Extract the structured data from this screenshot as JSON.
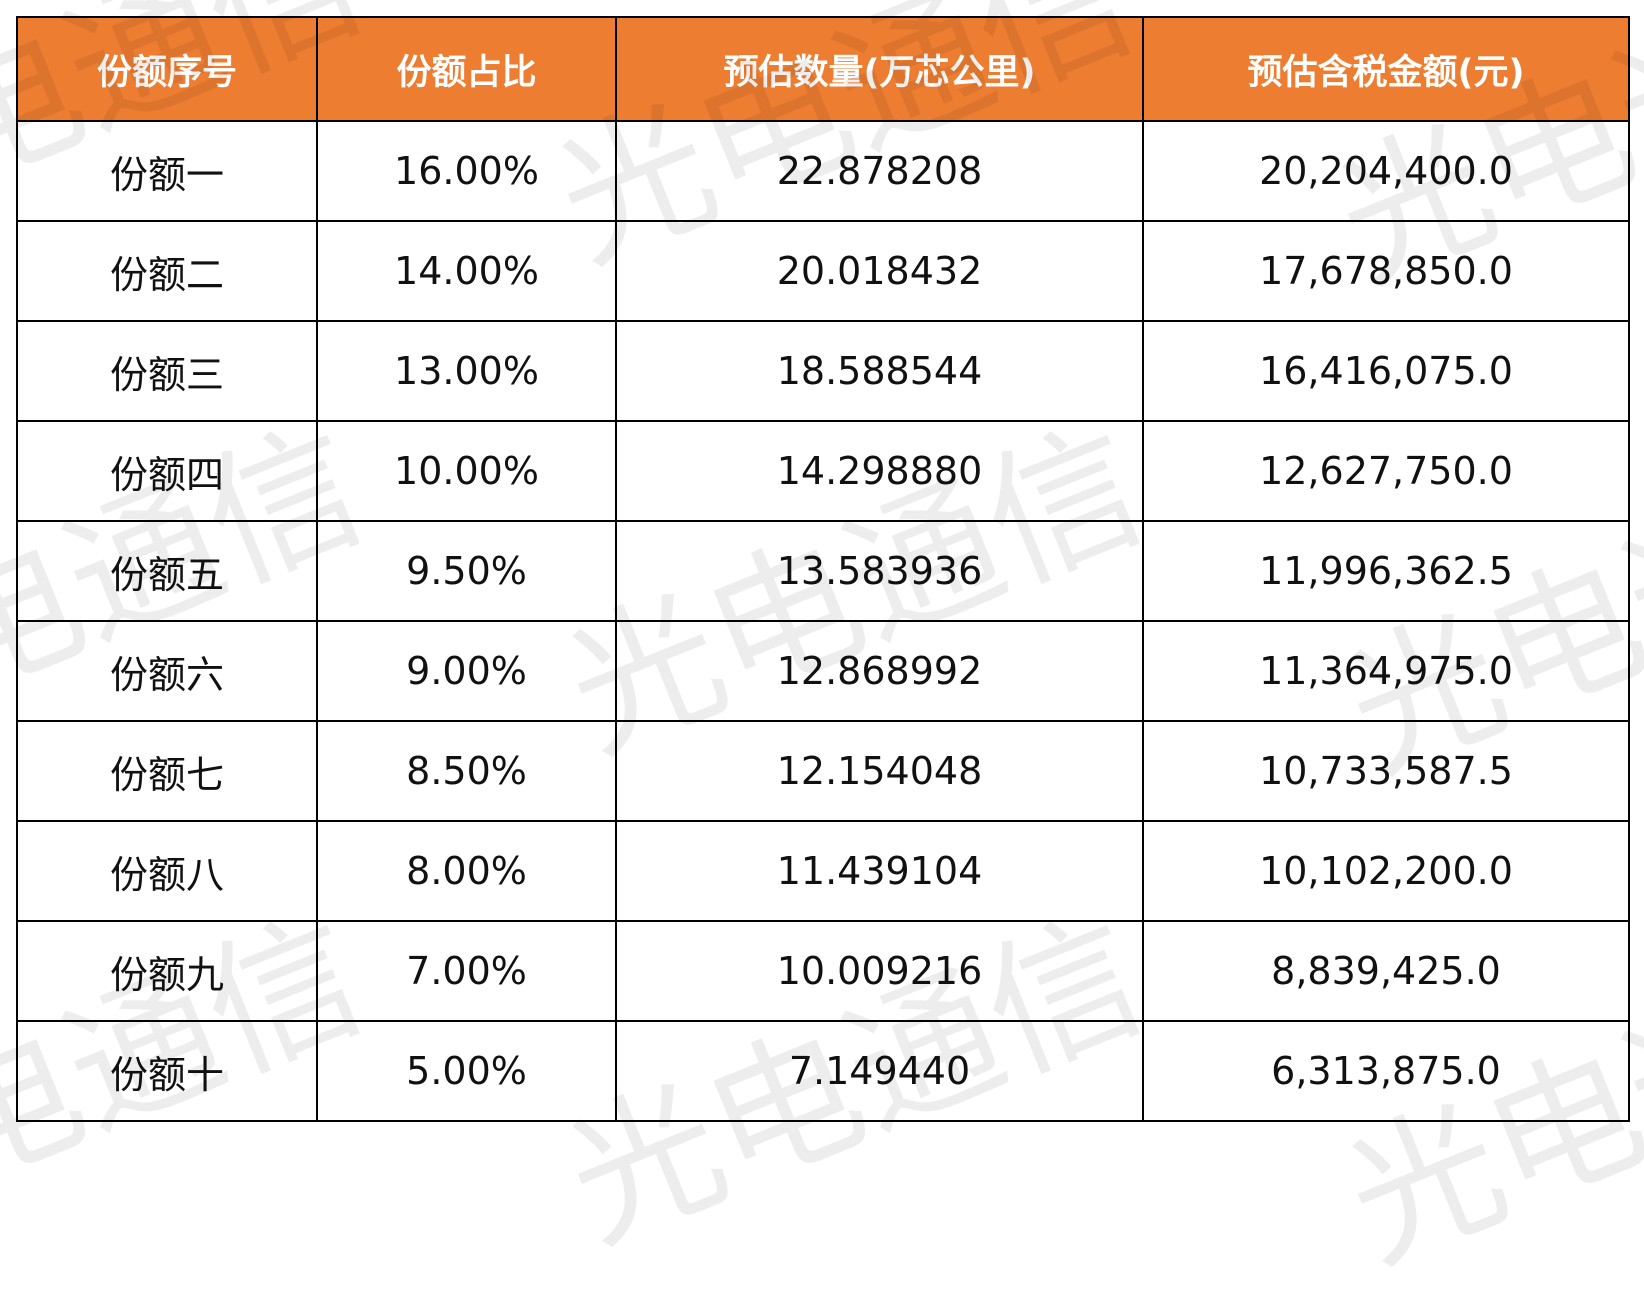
{
  "watermark": "光电通信",
  "colors": {
    "header_bg": "#ED7D31",
    "header_text": "#FFFFFF"
  },
  "table": {
    "headers": [
      "份额序号",
      "份额占比",
      "预估数量(万芯公里)",
      "预估含税金额(元)"
    ],
    "rows": [
      [
        "份额一",
        "16.00%",
        "22.878208",
        "20,204,400.0"
      ],
      [
        "份额二",
        "14.00%",
        "20.018432",
        "17,678,850.0"
      ],
      [
        "份额三",
        "13.00%",
        "18.588544",
        "16,416,075.0"
      ],
      [
        "份额四",
        "10.00%",
        "14.298880",
        "12,627,750.0"
      ],
      [
        "份额五",
        "9.50%",
        "13.583936",
        "11,996,362.5"
      ],
      [
        "份额六",
        "9.00%",
        "12.868992",
        "11,364,975.0"
      ],
      [
        "份额七",
        "8.50%",
        "12.154048",
        "10,733,587.5"
      ],
      [
        "份额八",
        "8.00%",
        "11.439104",
        "10,102,200.0"
      ],
      [
        "份额九",
        "7.00%",
        "10.009216",
        "8,839,425.0"
      ],
      [
        "份额十",
        "5.00%",
        "7.149440",
        "6,313,875.0"
      ]
    ]
  }
}
